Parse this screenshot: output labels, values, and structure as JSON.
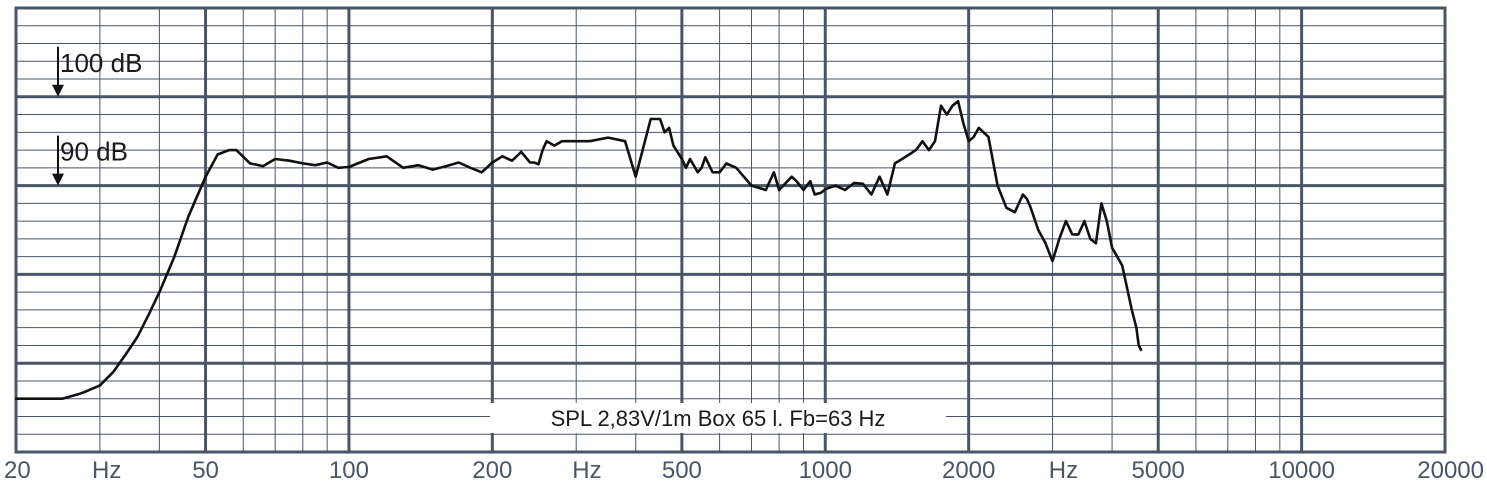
{
  "chart_data": {
    "type": "line",
    "caption": "SPL   2,83V/1m   Box 65 l.   Fb=63 Hz",
    "x_scale": "log",
    "xlim": [
      20,
      20000
    ],
    "x_ticks": [
      20,
      50,
      100,
      200,
      500,
      1000,
      2000,
      5000,
      10000,
      20000
    ],
    "x_tick_labels": [
      "20",
      "50",
      "100",
      "200",
      "500",
      "1000",
      "2000",
      "5000",
      "10000",
      "20000"
    ],
    "x_unit_label": "Hz",
    "x_unit_positions_hz": [
      31,
      316,
      3162
    ],
    "ylim": [
      60,
      110
    ],
    "ylabel": "dB",
    "level_markers": [
      {
        "label": "100 dB",
        "value": 100
      },
      {
        "label": "90 dB",
        "value": 90
      }
    ],
    "grid": true,
    "colors": {
      "grid": "#4a5566",
      "curve": "#111111",
      "text": "#1a1a1a"
    },
    "series": [
      {
        "x": [
          20,
          25,
          27,
          28,
          30,
          32,
          34,
          36,
          38,
          40,
          43,
          46,
          50,
          53,
          56,
          58,
          62,
          66,
          70,
          75,
          80,
          85,
          90,
          95,
          100,
          110,
          120,
          130,
          140,
          150,
          160,
          170,
          180,
          190,
          200,
          210,
          220,
          230,
          240,
          245,
          250,
          255,
          260,
          270,
          280,
          300,
          320,
          350,
          380,
          400,
          430,
          450,
          460,
          470,
          480,
          500,
          510,
          520,
          540,
          550,
          560,
          580,
          600,
          620,
          650,
          700,
          750,
          780,
          800,
          850,
          870,
          900,
          930,
          950,
          980,
          1000,
          1050,
          1100,
          1150,
          1200,
          1250,
          1300,
          1350,
          1400,
          1450,
          1500,
          1550,
          1600,
          1650,
          1700,
          1750,
          1800,
          1850,
          1900,
          1950,
          2000,
          2050,
          2100,
          2200,
          2300,
          2400,
          2500,
          2600,
          2650,
          2700,
          2800,
          2900,
          3000,
          3100,
          3200,
          3300,
          3400,
          3500,
          3600,
          3700,
          3800,
          3900,
          4000,
          4100,
          4200,
          4300,
          4400,
          4500,
          4550,
          4600
        ],
        "y": [
          66.0,
          66.0,
          66.5,
          66.8,
          67.5,
          69.0,
          71.0,
          73.0,
          75.5,
          78.0,
          82.0,
          86.5,
          91.0,
          93.5,
          94.0,
          94.0,
          92.5,
          92.2,
          93.0,
          92.8,
          92.5,
          92.3,
          92.6,
          92.0,
          92.1,
          93.0,
          93.3,
          92.0,
          92.3,
          91.8,
          92.2,
          92.6,
          92.0,
          91.5,
          92.6,
          93.3,
          92.8,
          93.8,
          92.6,
          92.6,
          92.4,
          94.0,
          95.0,
          94.5,
          95.0,
          95.0,
          95.0,
          95.4,
          95.0,
          91.0,
          97.5,
          97.5,
          96.0,
          96.5,
          94.5,
          93.0,
          92.0,
          93.0,
          91.5,
          92.0,
          93.2,
          91.5,
          91.5,
          92.5,
          92.0,
          90.0,
          89.5,
          91.5,
          89.5,
          91.0,
          90.5,
          89.5,
          90.5,
          89.0,
          89.2,
          89.6,
          90.0,
          89.5,
          90.3,
          90.2,
          89.0,
          91.0,
          89.0,
          92.5,
          93.0,
          93.5,
          94.0,
          95.0,
          94.0,
          95.0,
          99.0,
          98.0,
          99.0,
          99.5,
          97.0,
          95.0,
          95.5,
          96.5,
          95.5,
          90.0,
          87.5,
          87.0,
          89.0,
          88.5,
          87.5,
          85.0,
          83.5,
          81.5,
          84.0,
          86.0,
          84.5,
          84.5,
          86.0,
          84.0,
          83.5,
          88.0,
          86.0,
          83.0,
          82.0,
          81.0,
          78.5,
          76.0,
          74.0,
          72.0,
          71.5
        ]
      }
    ]
  }
}
